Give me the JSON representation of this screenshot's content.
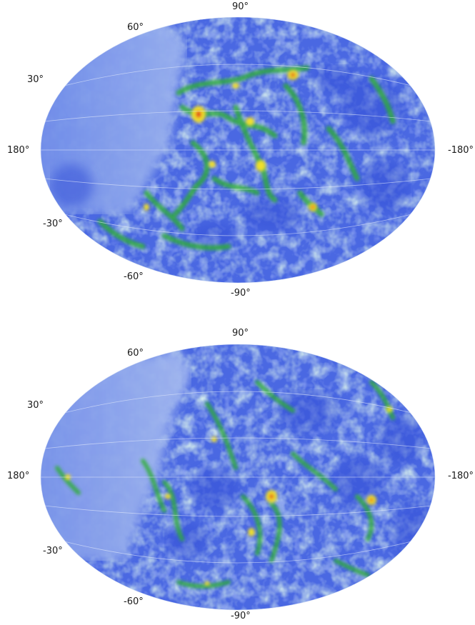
{
  "maps": [
    {
      "name": "top-map",
      "labels": {
        "lat_north_pole": "90°",
        "lat_south_pole": "-90°",
        "lat_60": "60°",
        "lat_30": "30°",
        "lat_m30": "-30°",
        "lat_m60": "-60°",
        "lon_left": "180°",
        "lon_right": "-180°"
      }
    },
    {
      "name": "bottom-map",
      "labels": {
        "lat_north_pole": "90°",
        "lat_south_pole": "-90°",
        "lat_60": "60°",
        "lat_30": "30°",
        "lat_m30": "-30°",
        "lat_m60": "-60°",
        "lon_left": "180°",
        "lon_right": "-180°"
      }
    }
  ],
  "colors": {
    "background": "#ffffff",
    "low": "#3f5fe0",
    "mid_low": "#7fa0ea",
    "mid": "#a8d6d8",
    "mid_high": "#2ea82e",
    "high": "#f2e02a",
    "peak": "#e03a1a",
    "smooth_region": "#8aa2ec",
    "grid": "#e8eefc"
  }
}
